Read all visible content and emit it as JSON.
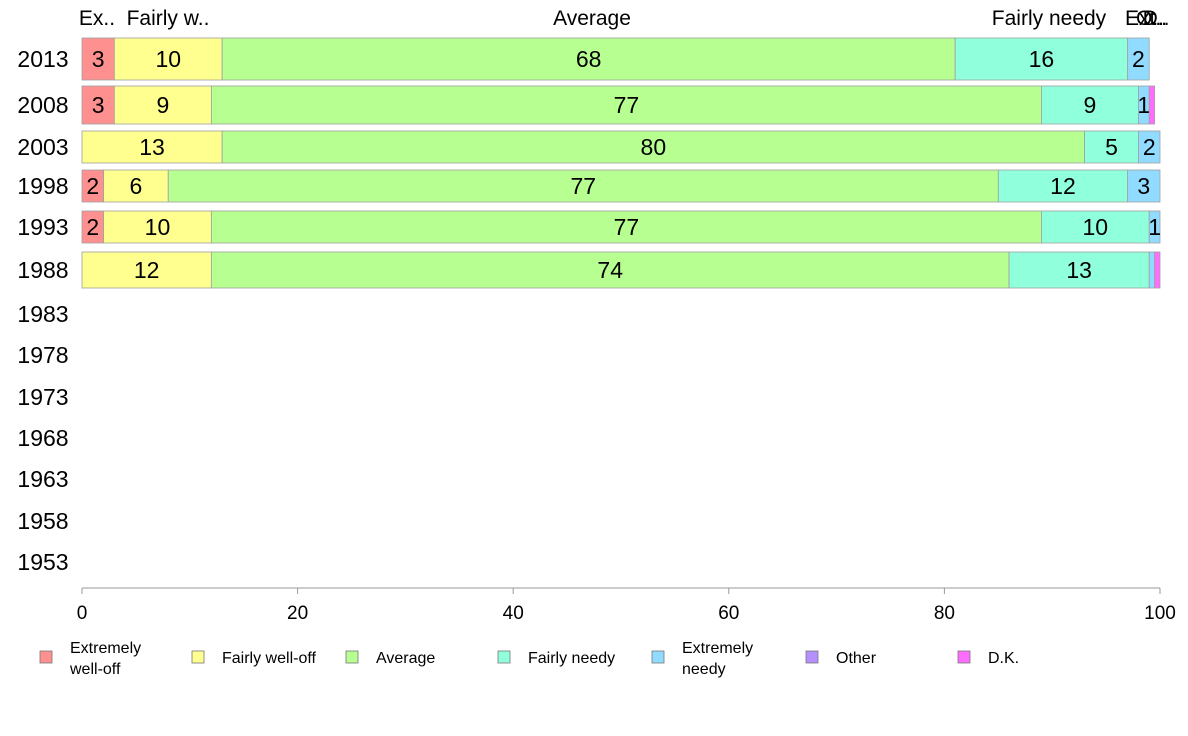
{
  "chart_data": {
    "type": "bar",
    "orientation": "horizontal",
    "stacked": true,
    "title": "",
    "xlabel": "",
    "ylabel": "",
    "xlim": [
      0,
      100
    ],
    "x_ticks": [
      "0",
      "20",
      "40",
      "60",
      "80",
      "100"
    ],
    "grid": false,
    "legend_position": "bottom",
    "categories": [
      "2013",
      "2008",
      "2003",
      "1998",
      "1993",
      "1988",
      "1983",
      "1978",
      "1973",
      "1968",
      "1963",
      "1958",
      "1953"
    ],
    "top_labels": [
      "Ex..",
      "Fairly w..",
      "Average",
      "Fairly needy",
      "Ext..",
      "O..",
      "D.."
    ],
    "series": [
      {
        "name": "Extremely well-off",
        "legend_lines": [
          "Extremely",
          "well-off"
        ],
        "color": "#ff9090",
        "values": [
          3,
          3,
          0,
          2,
          2,
          0,
          null,
          null,
          null,
          null,
          null,
          null,
          null
        ]
      },
      {
        "name": "Fairly well-off",
        "legend_lines": [
          "Fairly well-off"
        ],
        "color": "#ffff90",
        "values": [
          10,
          9,
          13,
          6,
          10,
          12,
          null,
          null,
          null,
          null,
          null,
          null,
          null
        ]
      },
      {
        "name": "Average",
        "legend_lines": [
          "Average"
        ],
        "color": "#b6ff90",
        "values": [
          68,
          77,
          80,
          77,
          77,
          74,
          null,
          null,
          null,
          null,
          null,
          null,
          null
        ]
      },
      {
        "name": "Fairly needy",
        "legend_lines": [
          "Fairly needy"
        ],
        "color": "#90ffdb",
        "values": [
          16,
          9,
          5,
          12,
          10,
          13,
          null,
          null,
          null,
          null,
          null,
          null,
          null
        ]
      },
      {
        "name": "Extremely needy",
        "legend_lines": [
          "Extremely",
          "needy"
        ],
        "color": "#90dbff",
        "values": [
          2,
          1,
          2,
          3,
          1,
          0.5,
          null,
          null,
          null,
          null,
          null,
          null,
          null
        ]
      },
      {
        "name": "Other",
        "legend_lines": [
          "Other"
        ],
        "color": "#b690ff",
        "values": [
          0,
          0,
          0,
          0,
          0,
          0,
          null,
          null,
          null,
          null,
          null,
          null,
          null
        ]
      },
      {
        "name": "D.K.",
        "legend_lines": [
          "D.K."
        ],
        "color": "#ff6dff",
        "values": [
          0,
          0.5,
          0,
          0,
          0,
          0.5,
          null,
          null,
          null,
          null,
          null,
          null,
          null
        ]
      }
    ],
    "value_labels": [
      [
        "3",
        "10",
        "68",
        "16",
        "2",
        "",
        ""
      ],
      [
        "3",
        "9",
        "77",
        "9",
        "1",
        "",
        ""
      ],
      [
        "",
        "13",
        "80",
        "5",
        "2",
        "",
        ""
      ],
      [
        "2",
        "6",
        "77",
        "12",
        "3",
        "",
        ""
      ],
      [
        "2",
        "10",
        "77",
        "10",
        "1",
        "",
        ""
      ],
      [
        "",
        "12",
        "74",
        "13",
        "",
        "",
        ""
      ],
      [],
      [],
      [],
      [],
      [],
      [],
      []
    ]
  }
}
